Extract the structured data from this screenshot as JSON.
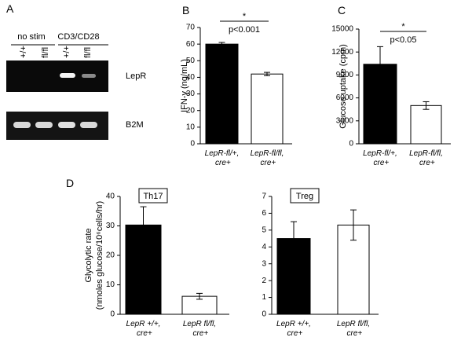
{
  "gel": {
    "panel_label": "A",
    "groups": [
      "no stim",
      "CD3/CD28"
    ],
    "lanes": [
      "+/+",
      "fl/fl",
      "+/+",
      "fl/fl"
    ],
    "bands": [
      "LepR",
      "B2M"
    ]
  },
  "panel_d": {
    "panel_label": "D",
    "ylabel": [
      "Glycolytic rate",
      "(nmoles glucose/10⁶cells/hr)"
    ]
  },
  "chart_data": [
    {
      "type": "bar",
      "panel_label": "B",
      "ylabel": "IFN-γ (ng/mL)",
      "categories": [
        "LepR-fl/+, cre+",
        "LepR-fl/fl, cre+"
      ],
      "values": [
        60,
        42
      ],
      "errors": [
        1,
        1
      ],
      "colors": [
        "#000000",
        "#ffffff"
      ],
      "ylim": [
        0,
        70
      ],
      "yticks": [
        0,
        10,
        20,
        30,
        40,
        50,
        60,
        70
      ],
      "annotation": "*",
      "p_value": "p<0.001"
    },
    {
      "type": "bar",
      "panel_label": "C",
      "ylabel": "Glucose uptake (cpm)",
      "categories": [
        "LepR-fl/+, cre+",
        "LepR-fl/fl, cre+"
      ],
      "values": [
        10400,
        5000
      ],
      "errors": [
        2300,
        500
      ],
      "colors": [
        "#000000",
        "#ffffff"
      ],
      "ylim": [
        0,
        15000
      ],
      "yticks": [
        0,
        3000,
        6000,
        9000,
        12000,
        15000
      ],
      "annotation": "*",
      "p_value": "p<0.05"
    },
    {
      "type": "bar",
      "inset_label": "Th17",
      "categories": [
        "LepR +/+, cre+",
        "LepR fl/fl, cre+"
      ],
      "values": [
        30.3,
        6.1
      ],
      "errors": [
        6.2,
        1.0
      ],
      "colors": [
        "#000000",
        "#ffffff"
      ],
      "ylim": [
        0,
        40
      ],
      "yticks": [
        0,
        10,
        20,
        30,
        40
      ]
    },
    {
      "type": "bar",
      "inset_label": "Treg",
      "categories": [
        "LepR +/+, cre+",
        "LepR fl/fl, cre+"
      ],
      "values": [
        4.5,
        5.3
      ],
      "errors": [
        1.0,
        0.9
      ],
      "colors": [
        "#000000",
        "#ffffff"
      ],
      "ylim": [
        0,
        7
      ],
      "yticks": [
        0,
        1,
        2,
        3,
        4,
        5,
        6,
        7
      ]
    }
  ]
}
